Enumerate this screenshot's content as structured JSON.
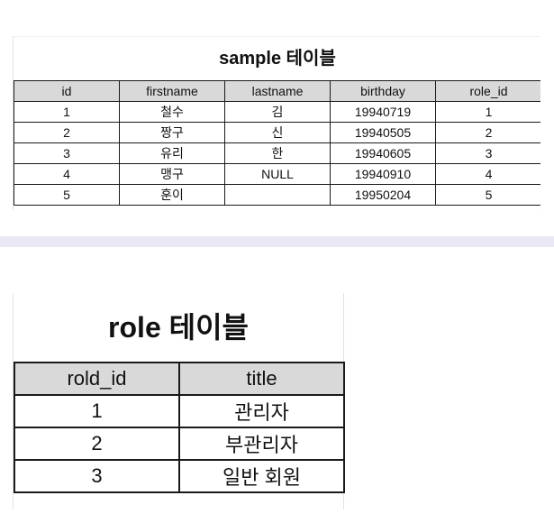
{
  "sample_table": {
    "title": "sample 테이블",
    "columns": [
      "id",
      "firstname",
      "lastname",
      "birthday",
      "role_id"
    ],
    "rows": [
      [
        "1",
        "철수",
        "김",
        "19940719",
        "1"
      ],
      [
        "2",
        "짱구",
        "신",
        "19940505",
        "2"
      ],
      [
        "3",
        "유리",
        "한",
        "19940605",
        "3"
      ],
      [
        "4",
        "맹구",
        "NULL",
        "19940910",
        "4"
      ],
      [
        "5",
        "훈이",
        "",
        "19950204",
        "5"
      ]
    ]
  },
  "role_table": {
    "title": "role 테이블",
    "columns": [
      "rold_id",
      "title"
    ],
    "rows": [
      [
        "1",
        "관리자"
      ],
      [
        "2",
        "부관리자"
      ],
      [
        "3",
        "일반 회원"
      ]
    ]
  },
  "colors": {
    "header_bg": "#d9d9d9",
    "border": "#1a1a1a",
    "separator": "#ebe8f5"
  }
}
